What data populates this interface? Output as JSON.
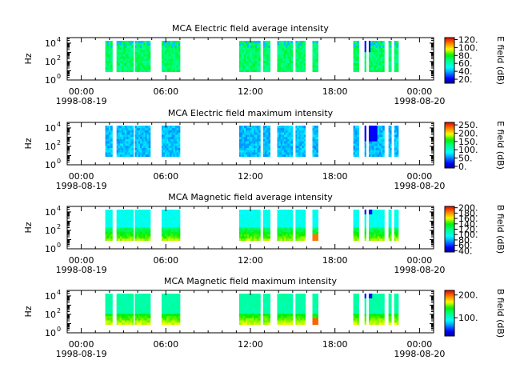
{
  "chart_data": [
    {
      "type": "heatmap",
      "title": "MCA  Electric field average intensity",
      "ylabel": "Hz",
      "colorbar_label": "E field (dB)",
      "colorbar_ticks": [
        "20.",
        "40.",
        "60.",
        "80.",
        "100.",
        "120."
      ],
      "colorbar_range": [
        10,
        125
      ],
      "ylim_log10": [
        0,
        4.6
      ],
      "y_ticks": [
        {
          "base": "10",
          "exp": "0"
        },
        {
          "base": "10",
          "exp": "2"
        },
        {
          "base": "10",
          "exp": "4"
        }
      ],
      "x_ticks": [
        "00:00",
        "06:00",
        "12:00",
        "18:00"
      ],
      "x_dates": [
        "1998-08-19",
        "1998-08-20"
      ],
      "xlim_hours": [
        -1,
        25
      ],
      "data_intervals_hours": [
        [
          1.7,
          2.2
        ],
        [
          2.5,
          3.7
        ],
        [
          3.8,
          4.9
        ],
        [
          5.7,
          7.0
        ],
        [
          11.2,
          12.7
        ],
        [
          12.9,
          13.4
        ],
        [
          13.9,
          15.0
        ],
        [
          15.2,
          15.9
        ],
        [
          16.4,
          16.8
        ],
        [
          19.3,
          19.7
        ],
        [
          20.1,
          20.2
        ],
        [
          20.4,
          21.5
        ],
        [
          21.8,
          22.0
        ],
        [
          22.2,
          22.5
        ]
      ],
      "level_db": "mostly 60-80 dB (green/cyan), blue patches near 20-40 dB at high frequency"
    },
    {
      "type": "heatmap",
      "title": "MCA  Electric field maximum intensity",
      "ylabel": "Hz",
      "colorbar_label": "E field (dB)",
      "colorbar_ticks": [
        "0.",
        "50.",
        "100.",
        "150.",
        "200.",
        "250."
      ],
      "colorbar_range": [
        -10,
        265
      ],
      "ylim_log10": [
        0,
        4.6
      ],
      "y_ticks": [
        {
          "base": "10",
          "exp": "0"
        },
        {
          "base": "10",
          "exp": "2"
        },
        {
          "base": "10",
          "exp": "4"
        }
      ],
      "x_ticks": [
        "00:00",
        "06:00",
        "12:00",
        "18:00"
      ],
      "x_dates": [
        "1998-08-19",
        "1998-08-20"
      ],
      "xlim_hours": [
        -1,
        25
      ],
      "data_intervals_hours": [
        [
          1.7,
          2.2
        ],
        [
          2.5,
          3.7
        ],
        [
          3.8,
          4.9
        ],
        [
          5.7,
          7.0
        ],
        [
          11.2,
          12.7
        ],
        [
          12.9,
          13.4
        ],
        [
          13.9,
          15.0
        ],
        [
          15.2,
          15.9
        ],
        [
          16.4,
          16.8
        ],
        [
          19.3,
          19.7
        ],
        [
          20.1,
          20.2
        ],
        [
          20.4,
          21.5
        ],
        [
          21.8,
          22.0
        ],
        [
          22.2,
          22.5
        ]
      ],
      "level_db": "mostly 60-100 dB (blue/cyan)"
    },
    {
      "type": "heatmap",
      "title": "MCA  Magnetic field average intensity",
      "ylabel": "Hz",
      "colorbar_label": "B field (dB)",
      "colorbar_ticks": [
        "40.",
        "60.",
        "80.",
        "100.",
        "120.",
        "140.",
        "160.",
        "180.",
        "200."
      ],
      "colorbar_range": [
        35,
        205
      ],
      "ylim_log10": [
        0,
        4.6
      ],
      "y_ticks": [
        {
          "base": "10",
          "exp": "0"
        },
        {
          "base": "10",
          "exp": "2"
        },
        {
          "base": "10",
          "exp": "4"
        }
      ],
      "x_ticks": [
        "00:00",
        "06:00",
        "12:00",
        "18:00"
      ],
      "x_dates": [
        "1998-08-19",
        "1998-08-20"
      ],
      "xlim_hours": [
        -1,
        25
      ],
      "data_intervals_hours": [
        [
          1.7,
          2.2
        ],
        [
          2.5,
          3.7
        ],
        [
          3.8,
          4.9
        ],
        [
          5.7,
          7.0
        ],
        [
          11.2,
          12.7
        ],
        [
          12.9,
          13.4
        ],
        [
          13.9,
          15.0
        ],
        [
          15.2,
          15.9
        ],
        [
          16.4,
          16.8
        ],
        [
          19.3,
          19.7
        ],
        [
          20.1,
          20.2
        ],
        [
          20.4,
          21.5
        ],
        [
          21.8,
          22.0
        ],
        [
          22.2,
          22.5
        ]
      ],
      "level_db": "cyan (~90 dB) above 100 Hz, green to yellow (~120-150 dB) below 100 Hz"
    },
    {
      "type": "heatmap",
      "title": "MCA  Magnetic field maximum intensity",
      "ylabel": "Hz",
      "colorbar_label": "B field (dB)",
      "colorbar_ticks": [
        "100.",
        "200."
      ],
      "colorbar_range": [
        20,
        220
      ],
      "ylim_log10": [
        0,
        4.6
      ],
      "y_ticks": [
        {
          "base": "10",
          "exp": "0"
        },
        {
          "base": "10",
          "exp": "2"
        },
        {
          "base": "10",
          "exp": "4"
        }
      ],
      "x_ticks": [
        "00:00",
        "06:00",
        "12:00",
        "18:00"
      ],
      "x_dates": [
        "1998-08-19",
        "1998-08-20"
      ],
      "xlim_hours": [
        -1,
        25
      ],
      "data_intervals_hours": [
        [
          1.7,
          2.2
        ],
        [
          2.5,
          3.7
        ],
        [
          3.8,
          4.9
        ],
        [
          5.7,
          7.0
        ],
        [
          11.2,
          12.7
        ],
        [
          12.9,
          13.4
        ],
        [
          13.9,
          15.0
        ],
        [
          15.2,
          15.9
        ],
        [
          16.4,
          16.8
        ],
        [
          19.3,
          19.7
        ],
        [
          20.1,
          20.2
        ],
        [
          20.4,
          21.5
        ],
        [
          21.8,
          22.0
        ],
        [
          22.2,
          22.5
        ]
      ],
      "level_db": "cyan/green (~110-130 dB) above 100 Hz, yellow (~150-170 dB) below 100 Hz"
    }
  ]
}
